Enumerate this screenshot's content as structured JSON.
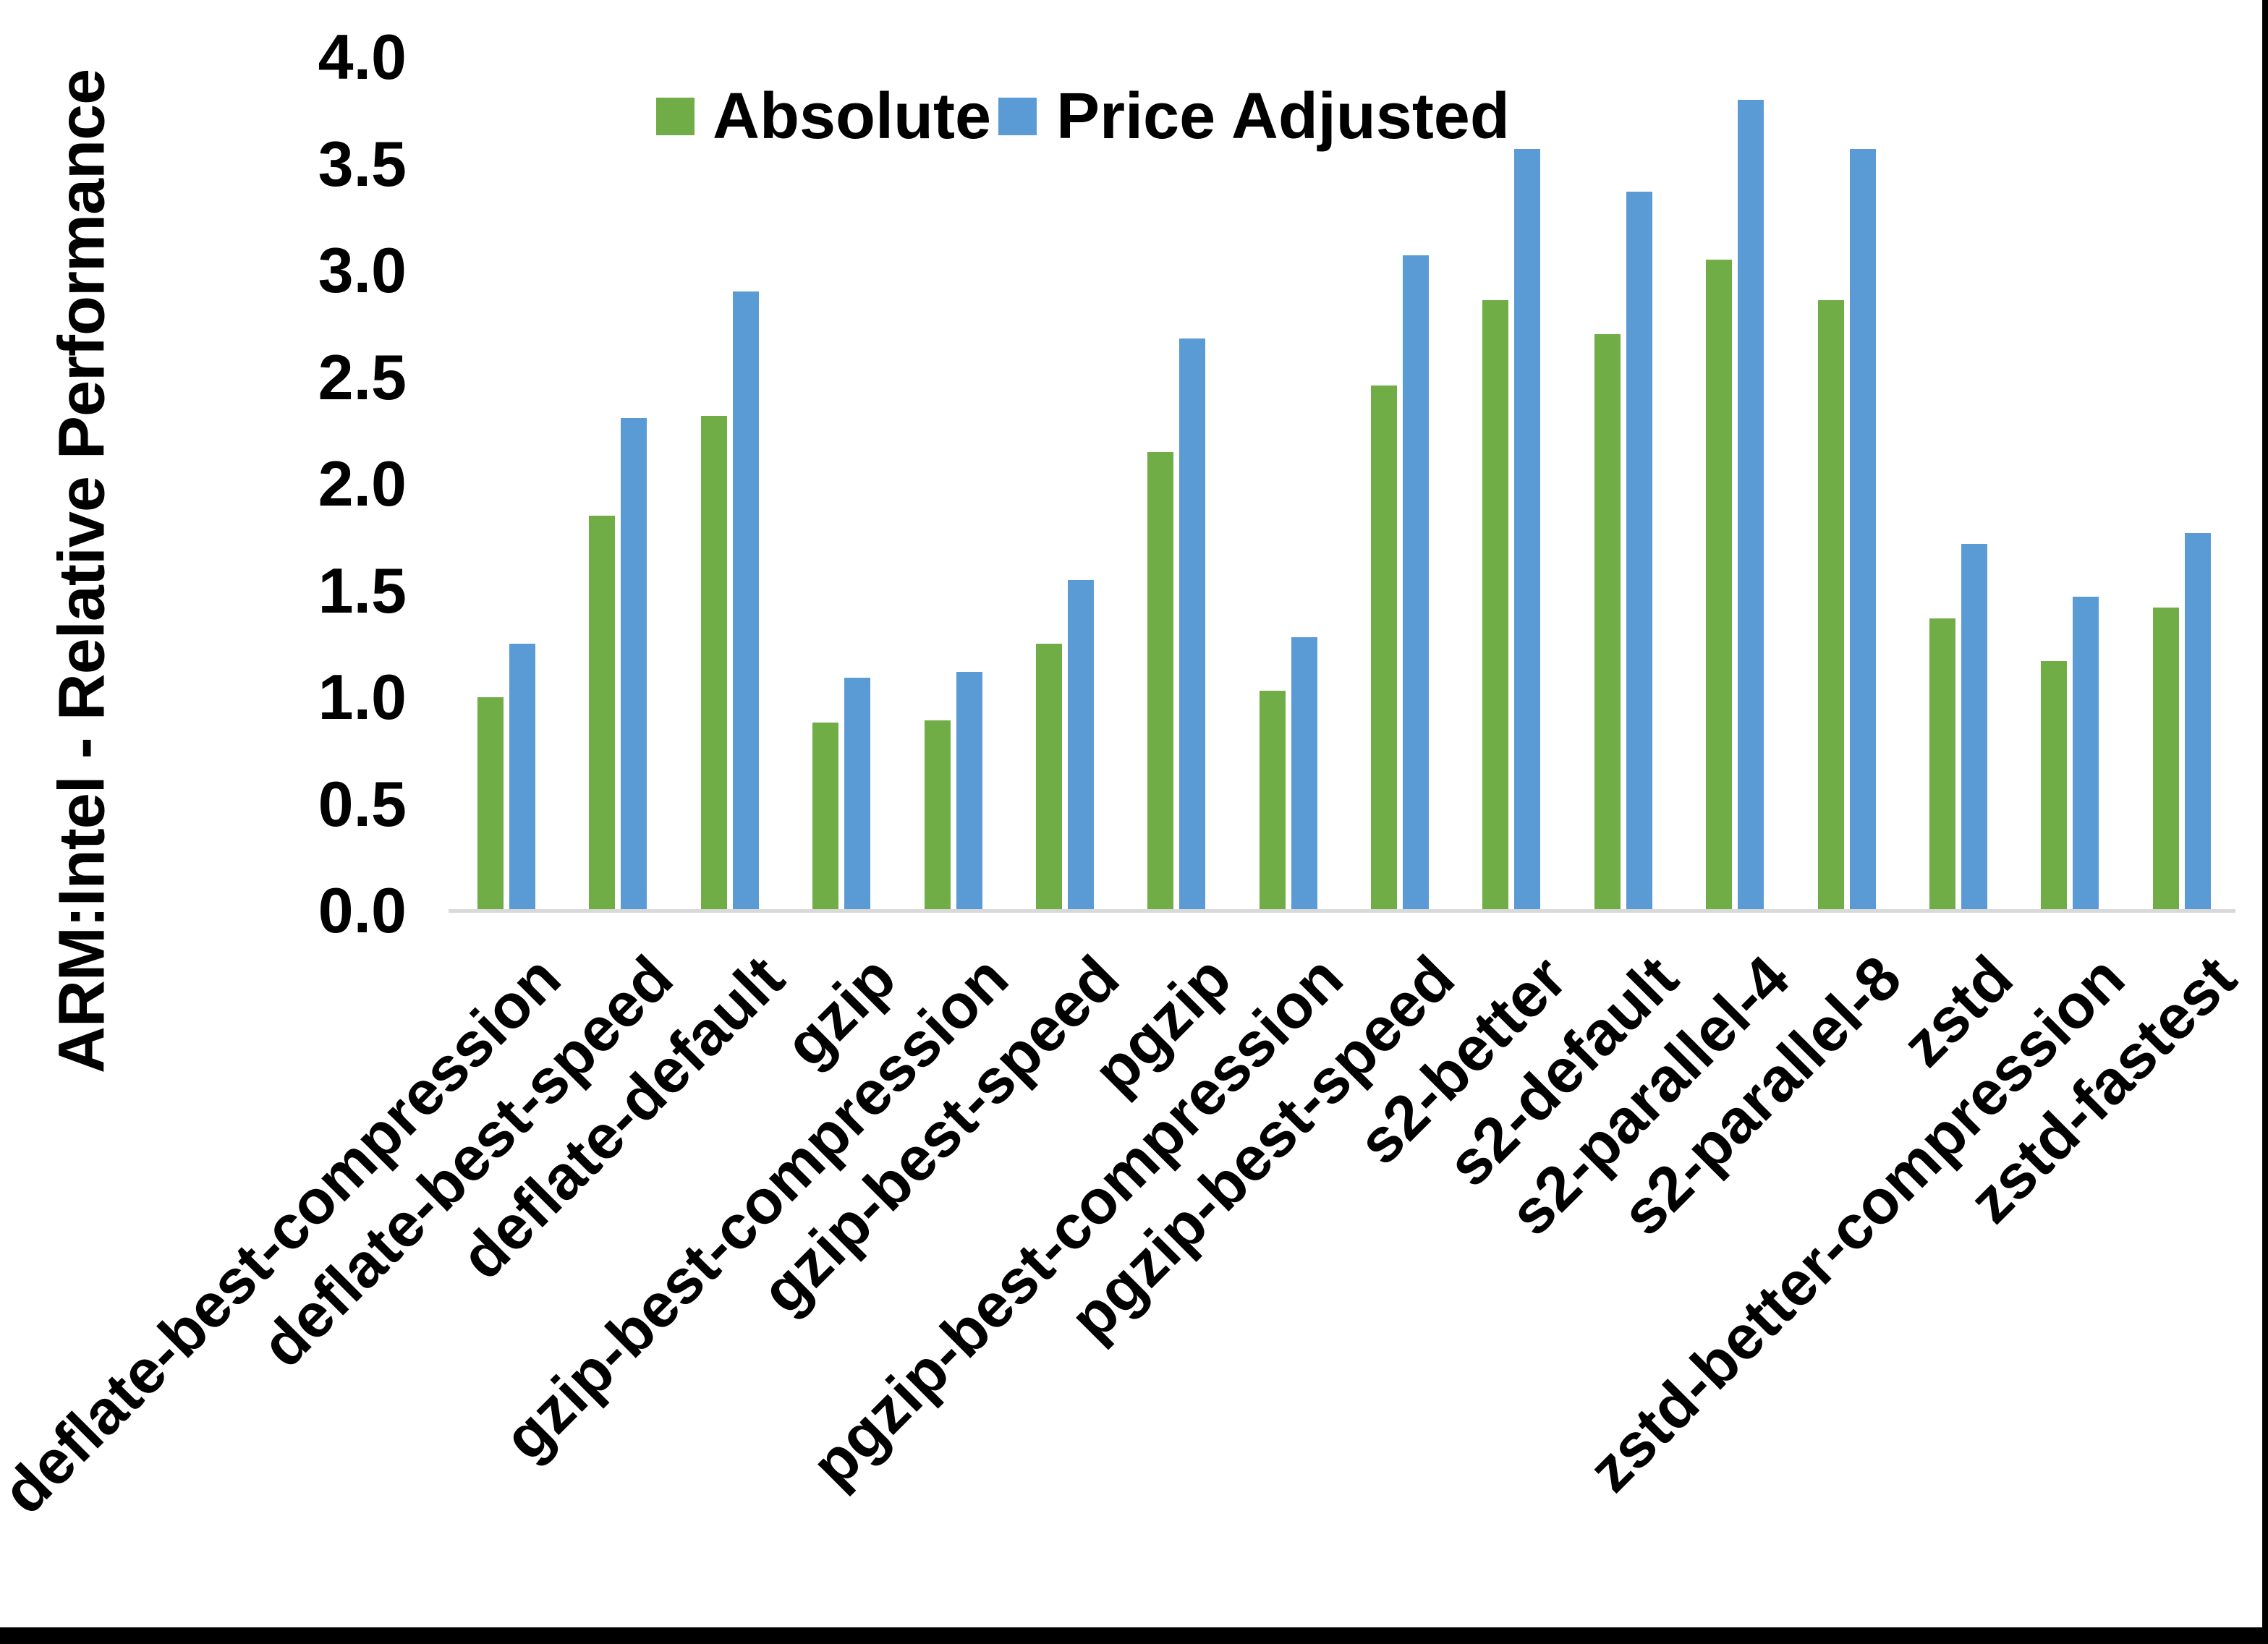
{
  "chart_data": {
    "type": "bar",
    "title": "",
    "xlabel": "",
    "ylabel": "ARM:Intel - Relative Performance",
    "ylim": [
      0.0,
      4.0
    ],
    "ytick_step": 0.5,
    "ytick_labels": [
      "0.0",
      "0.5",
      "1.0",
      "1.5",
      "2.0",
      "2.5",
      "3.0",
      "3.5",
      "4.0"
    ],
    "grid": false,
    "legend_position": "top-center",
    "categories": [
      "deflate-best-compression",
      "deflate-best-speed",
      "deflate-default",
      "gzip",
      "gzip-best-compression",
      "gzip-best-speed",
      "pgzip",
      "pgzip-best-compression",
      "pgzip-best-speed",
      "s2-better",
      "s2-default",
      "s2-parallel-4",
      "s2-parallel-8",
      "zstd",
      "zstd-better-compression",
      "zstd-fastest"
    ],
    "series": [
      {
        "name": "Absolute",
        "color": "#70AD47",
        "values": [
          1.0,
          1.85,
          2.32,
          0.88,
          0.89,
          1.25,
          2.15,
          1.03,
          2.46,
          2.86,
          2.7,
          3.05,
          2.86,
          1.37,
          1.17,
          1.42
        ]
      },
      {
        "name": "Price Adjusted",
        "color": "#5B9BD5",
        "values": [
          1.25,
          2.31,
          2.9,
          1.09,
          1.12,
          1.55,
          2.68,
          1.28,
          3.07,
          3.57,
          3.37,
          3.8,
          3.57,
          1.72,
          1.47,
          1.77
        ]
      }
    ]
  },
  "colors": {
    "background": "#FFFFFF",
    "axis_line": "#D9D9D9",
    "text": "#000000",
    "frame_border": "#000000"
  }
}
